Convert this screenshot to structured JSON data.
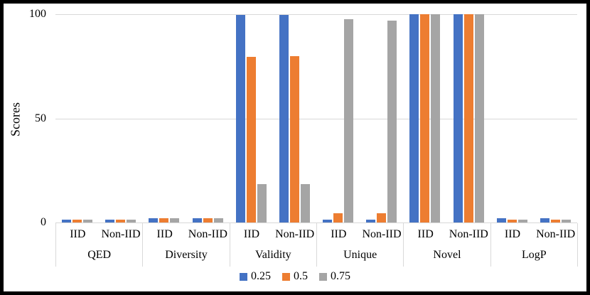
{
  "colors": {
    "series_blue": "#4472C4",
    "series_orange": "#ED7D31",
    "series_gray": "#A5A5A5",
    "gridline": "#D9D9D9",
    "background": "#FFFFFF",
    "frame": "#000000",
    "text": "#000000"
  },
  "y_axis": {
    "label": "Scores",
    "tick_labels": [
      "100",
      "50",
      "0"
    ]
  },
  "legend": {
    "items": [
      {
        "label": "0.25",
        "color": "#4472C4"
      },
      {
        "label": "0.5",
        "color": "#ED7D31"
      },
      {
        "label": "0.75",
        "color": "#A5A5A5"
      }
    ]
  },
  "chart_data": {
    "type": "bar",
    "title": "",
    "xlabel": "",
    "ylabel": "Scores",
    "ylim": [
      0,
      100
    ],
    "yticks": [
      100,
      50,
      0
    ],
    "grid": true,
    "legend_position": "bottom",
    "categories": [
      "QED",
      "Diversity",
      "Validity",
      "Unique",
      "Novel",
      "LogP"
    ],
    "subcategories": [
      "IID",
      "Non-IID"
    ],
    "slot_order": [
      "QED IID",
      "QED Non-IID",
      "Diversity IID",
      "Diversity Non-IID",
      "Validity IID",
      "Validity Non-IID",
      "Unique IID",
      "Unique Non-IID",
      "Novel IID",
      "Novel Non-IID",
      "LogP IID",
      "LogP Non-IID"
    ],
    "series": [
      {
        "name": "0.25",
        "color": "#4472C4",
        "values": [
          1.5,
          1.5,
          2.2,
          2.2,
          99.5,
          99.5,
          1.5,
          1.5,
          100,
          100,
          2,
          2
        ]
      },
      {
        "name": "0.5",
        "color": "#ED7D31",
        "values": [
          1.5,
          1.5,
          2.2,
          2.2,
          79.5,
          80,
          4.5,
          4.5,
          100,
          100,
          1.5,
          1.5
        ]
      },
      {
        "name": "0.75",
        "color": "#A5A5A5",
        "values": [
          1.5,
          1.5,
          2.2,
          2.2,
          18.5,
          18.5,
          97.5,
          97,
          100,
          100,
          1.5,
          1.5
        ]
      }
    ]
  }
}
